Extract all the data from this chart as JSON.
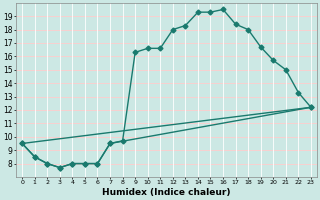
{
  "title": "",
  "xlabel": "Humidex (Indice chaleur)",
  "bg_color": "#cce8e4",
  "grid_color_v": "#ffffff",
  "grid_color_h": "#ffcccc",
  "line_color": "#1a7a6e",
  "xlim": [
    -0.5,
    23.5
  ],
  "ylim": [
    7.0,
    20.0
  ],
  "xticks": [
    0,
    1,
    2,
    3,
    4,
    5,
    6,
    7,
    8,
    9,
    10,
    11,
    12,
    13,
    14,
    15,
    16,
    17,
    18,
    19,
    20,
    21,
    22,
    23
  ],
  "yticks": [
    8,
    9,
    10,
    11,
    12,
    13,
    14,
    15,
    16,
    17,
    18,
    19
  ],
  "ytick_labels": [
    "8",
    "9",
    "10",
    "11",
    "12",
    "13",
    "14",
    "15",
    "16",
    "17",
    "18",
    "19"
  ],
  "line1_x": [
    0,
    1,
    2,
    3,
    4,
    5,
    6,
    7,
    8,
    9,
    10,
    11,
    12,
    13,
    14,
    15,
    16,
    17,
    18,
    19,
    20,
    21,
    22,
    23
  ],
  "line1_y": [
    9.5,
    8.5,
    8.0,
    7.7,
    8.0,
    8.0,
    8.0,
    9.5,
    9.7,
    16.3,
    16.6,
    16.6,
    18.0,
    18.3,
    19.3,
    19.3,
    19.5,
    18.4,
    18.0,
    16.7,
    15.7,
    15.0,
    13.3,
    12.2
  ],
  "line2_x": [
    0,
    1,
    2,
    3,
    4,
    5,
    6,
    7,
    23
  ],
  "line2_y": [
    9.5,
    8.5,
    8.0,
    7.7,
    8.0,
    8.0,
    8.0,
    9.5,
    12.2
  ],
  "line3_x": [
    0,
    23
  ],
  "line3_y": [
    9.5,
    12.2
  ],
  "marker_style": "D",
  "marker_size": 2.5,
  "line_width": 1.0
}
